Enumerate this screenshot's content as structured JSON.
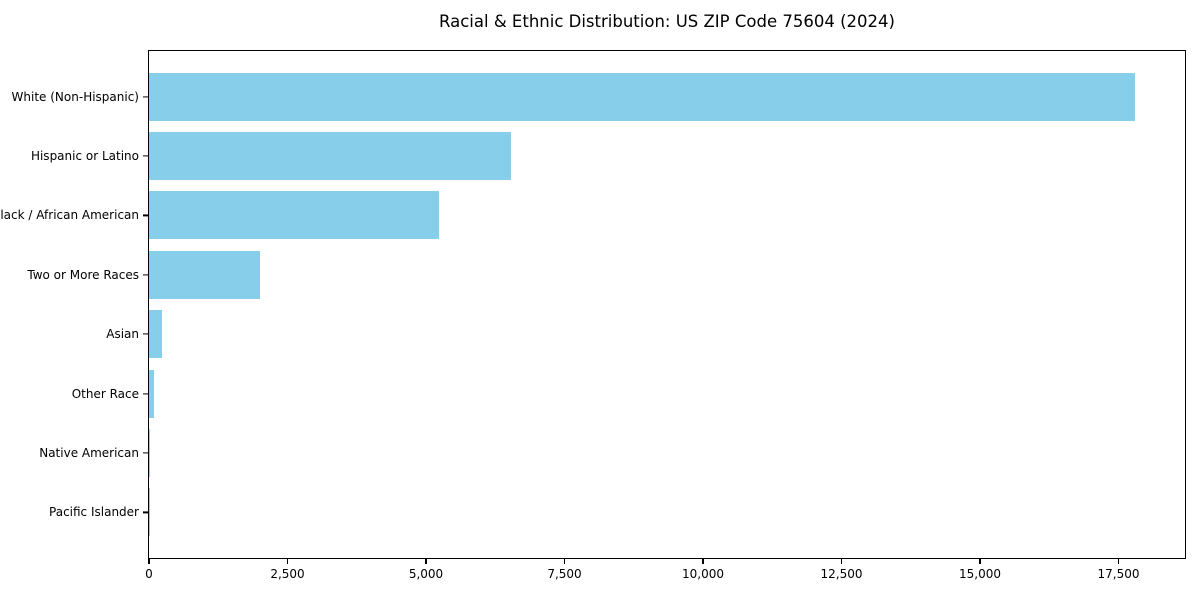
{
  "title": "Racial & Ethnic Distribution: US ZIP Code 75604 (2024)",
  "colors": {
    "bar": "#87CEEB",
    "axis": "#000000",
    "background": "#ffffff"
  },
  "chart_data": {
    "type": "bar",
    "orientation": "horizontal",
    "title": "Racial & Ethnic Distribution: US ZIP Code 75604 (2024)",
    "categories": [
      "White (Non-Hispanic)",
      "Hispanic or Latino",
      "Black / African American",
      "Two or More Races",
      "Asian",
      "Other Race",
      "Native American",
      "Pacific Islander"
    ],
    "values": [
      17800,
      6530,
      5240,
      2000,
      230,
      90,
      25,
      10
    ],
    "bar_color": "#87CEEB",
    "xlabel": "",
    "ylabel": "",
    "xlim": [
      0,
      18700
    ],
    "xticks": {
      "values": [
        0,
        2500,
        5000,
        7500,
        10000,
        12500,
        15000,
        17500
      ],
      "labels": [
        "0",
        "2,500",
        "5,000",
        "7,500",
        "10,000",
        "12,500",
        "15,000",
        "17,500"
      ]
    },
    "grid": false,
    "legend": null,
    "plot_background": "#ffffff"
  }
}
